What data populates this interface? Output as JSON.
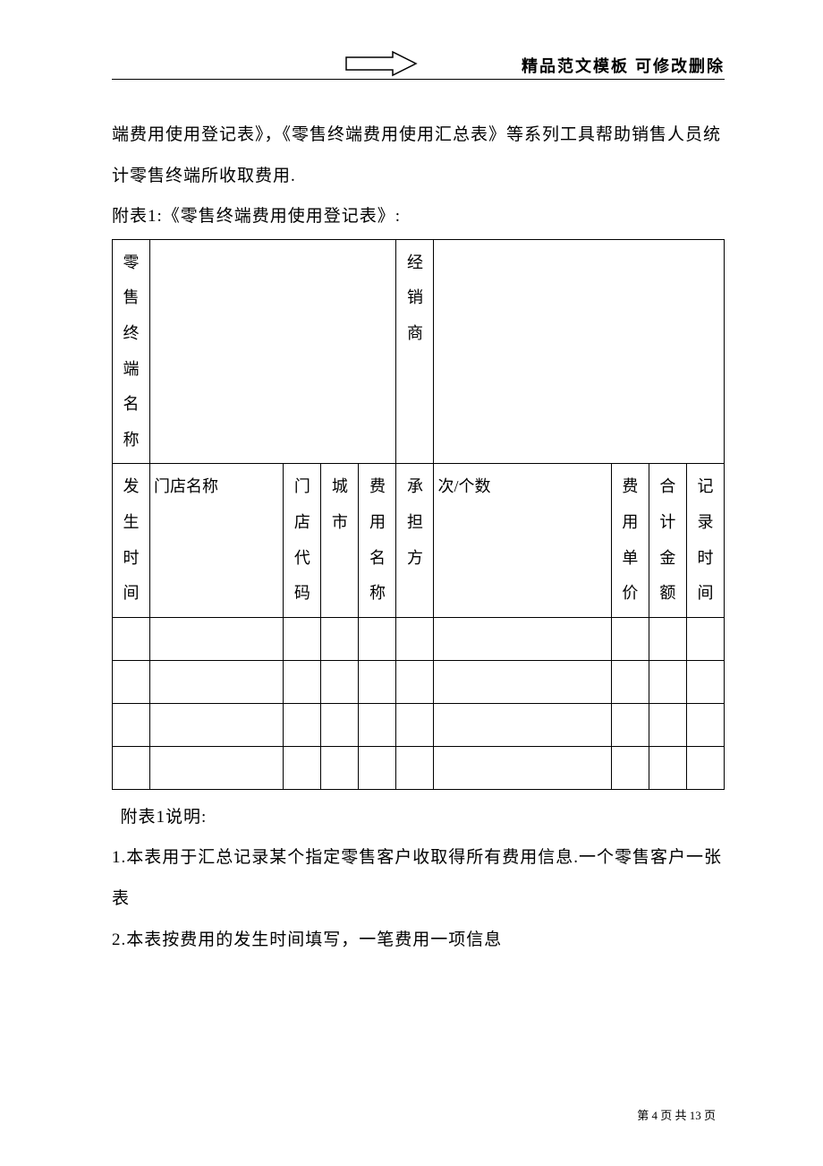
{
  "header": {
    "title": "精品范文模板  可修改删除"
  },
  "arrow": {
    "stroke": "#000000",
    "width": 78,
    "height": 28
  },
  "body": {
    "para1": "端费用使用登记表》，《零售终端费用使用汇总表》等系列工具帮助销售人员统计零售终端所收取费用.",
    "table_caption": "附表1:《零售终端费用使用登记表》:"
  },
  "table": {
    "border_color": "#000000",
    "row1": {
      "c1": "零售终端名称",
      "c2": "",
      "c3": "经销商",
      "c4": ""
    },
    "row2": {
      "c1": "发生时间",
      "c2": "门店名称",
      "c3": "门店代码",
      "c4": "城市",
      "c5": "费用名称",
      "c6": "承担方",
      "c7": "次/个数",
      "c8": "费用单价",
      "c9": "合计金额",
      "c10": "记录时间"
    },
    "col_widths": {
      "c1": 34,
      "c2": 128,
      "c3": 34,
      "c4": 34,
      "c5": 34,
      "c6": 34,
      "c7": 162,
      "c8": 34,
      "c9": 34,
      "c10": 34
    },
    "empty_rows": 4,
    "fontsize": 18
  },
  "notes": {
    "title": "附表1说明:",
    "item1": "1.本表用于汇总记录某个指定零售客户收取得所有费用信息.一个零售客户一张表",
    "item2": "2.本表按费用的发生时间填写，一笔费用一项信息"
  },
  "footer": {
    "text_prefix": "第 ",
    "current": "4",
    "text_mid": " 页 共 ",
    "total": "13",
    "text_suffix": " 页"
  }
}
